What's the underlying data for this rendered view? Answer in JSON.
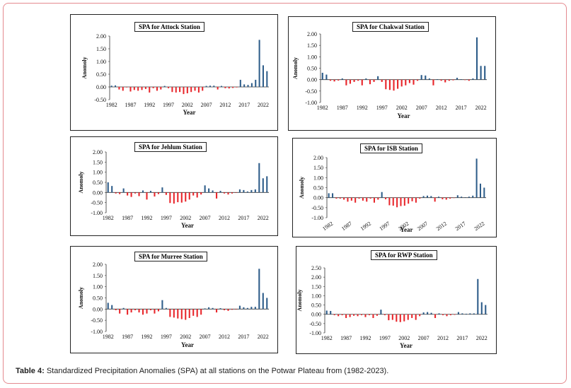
{
  "caption": {
    "label": "Table 4:",
    "text": "Standardized Precipitation Anomalies (SPA) at all stations on the Potwar Plateau from (1982-2023)."
  },
  "colors": {
    "positive": "#2e5d8a",
    "negative": "#e8262b",
    "frame": "#e48a8f"
  },
  "chart_data": [
    {
      "type": "bar",
      "title": "SPA for Attock Station",
      "xlabel": "Year",
      "ylabel": "Anomoly",
      "ylim": [
        -0.5,
        2.0
      ],
      "yticks": [
        "2.00",
        "1.50",
        "1.00",
        "0.50",
        "0.00",
        "-0.50"
      ],
      "xticks": [
        "1982",
        "1987",
        "1992",
        "1997",
        "2002",
        "2007",
        "2012",
        "2017",
        "2022"
      ],
      "x": [
        1982,
        1983,
        1984,
        1985,
        1986,
        1987,
        1988,
        1989,
        1990,
        1991,
        1992,
        1993,
        1994,
        1995,
        1996,
        1997,
        1998,
        1999,
        2000,
        2001,
        2002,
        2003,
        2004,
        2005,
        2006,
        2007,
        2008,
        2009,
        2010,
        2011,
        2012,
        2013,
        2014,
        2015,
        2016,
        2017,
        2018,
        2019,
        2020,
        2021,
        2022,
        2023
      ],
      "values": [
        0.05,
        0.06,
        -0.1,
        -0.15,
        -0.02,
        -0.18,
        -0.12,
        -0.15,
        -0.12,
        -0.08,
        -0.22,
        -0.05,
        -0.15,
        -0.1,
        0.04,
        -0.05,
        -0.2,
        -0.22,
        -0.2,
        -0.28,
        -0.25,
        -0.2,
        -0.15,
        -0.22,
        -0.15,
        0.04,
        0.05,
        0.05,
        -0.1,
        0.04,
        -0.05,
        -0.06,
        -0.04,
        -0.02,
        0.28,
        0.1,
        0.08,
        0.15,
        0.28,
        1.85,
        0.85,
        0.62
      ]
    },
    {
      "type": "bar",
      "title": "SPA for Chakwal Station",
      "xlabel": "Year",
      "ylabel": "Anomoly",
      "ylim": [
        -1.0,
        2.0
      ],
      "yticks": [
        "2.00",
        "1.50",
        "1.00",
        "0.50",
        "0.00",
        "-0.50",
        "-1.00"
      ],
      "xticks": [
        "1982",
        "1987",
        "1992",
        "1997",
        "2002",
        "2007",
        "2012",
        "2017",
        "2022"
      ],
      "x": [
        1982,
        1983,
        1984,
        1985,
        1986,
        1987,
        1988,
        1989,
        1990,
        1991,
        1992,
        1993,
        1994,
        1995,
        1996,
        1997,
        1998,
        1999,
        2000,
        2001,
        2002,
        2003,
        2004,
        2005,
        2006,
        2007,
        2008,
        2009,
        2010,
        2011,
        2012,
        2013,
        2014,
        2015,
        2016,
        2017,
        2018,
        2019,
        2020,
        2021,
        2022,
        2023
      ],
      "values": [
        0.3,
        0.22,
        -0.05,
        -0.08,
        -0.04,
        0.05,
        -0.25,
        -0.18,
        -0.1,
        -0.05,
        -0.25,
        0.05,
        -0.2,
        -0.1,
        0.15,
        -0.1,
        -0.42,
        -0.45,
        -0.48,
        -0.4,
        -0.3,
        -0.25,
        -0.15,
        -0.22,
        -0.05,
        0.2,
        0.18,
        0.05,
        -0.25,
        0.02,
        -0.05,
        -0.12,
        -0.05,
        -0.03,
        0.08,
        0.02,
        -0.02,
        -0.05,
        0.05,
        1.85,
        0.6,
        0.6
      ]
    },
    {
      "type": "bar",
      "title": "SPA for Jehlum Station",
      "xlabel": "Year",
      "ylabel": "Anomoly",
      "ylim": [
        -1.0,
        2.0
      ],
      "yticks": [
        "2.00",
        "1.50",
        "1.00",
        "0.50",
        "0.00",
        "-0.50",
        "-1.00"
      ],
      "xticks": [
        "1982",
        "1987",
        "1992",
        "1997",
        "2002",
        "2007",
        "2012",
        "2017",
        "2022"
      ],
      "x": [
        1982,
        1983,
        1984,
        1985,
        1986,
        1987,
        1988,
        1989,
        1990,
        1991,
        1992,
        1993,
        1994,
        1995,
        1996,
        1997,
        1998,
        1999,
        2000,
        2001,
        2002,
        2003,
        2004,
        2005,
        2006,
        2007,
        2008,
        2009,
        2010,
        2011,
        2012,
        2013,
        2014,
        2015,
        2016,
        2017,
        2018,
        2019,
        2020,
        2021,
        2022,
        2023
      ],
      "values": [
        0.5,
        0.32,
        -0.05,
        -0.08,
        0.2,
        -0.15,
        -0.22,
        -0.05,
        -0.18,
        0.1,
        -0.35,
        0.08,
        -0.2,
        -0.08,
        0.25,
        -0.12,
        -0.52,
        -0.55,
        -0.48,
        -0.5,
        -0.45,
        -0.35,
        -0.15,
        -0.25,
        -0.1,
        0.35,
        0.2,
        0.1,
        -0.3,
        0.08,
        -0.05,
        -0.1,
        -0.05,
        -0.02,
        0.15,
        0.12,
        0.05,
        0.12,
        0.15,
        1.45,
        0.7,
        0.8
      ]
    },
    {
      "type": "bar",
      "title": "SPA for ISB Station",
      "xlabel": "Year",
      "ylabel": "Anomoly",
      "ylim": [
        -1.0,
        2.0
      ],
      "yticks": [
        "2.00",
        "1.50",
        "1.00",
        "0.50",
        "0.00",
        "-0.50",
        "-1.00"
      ],
      "xticks": [
        "1982",
        "1987",
        "1992",
        "1997",
        "2002",
        "2007",
        "2012",
        "2017",
        "2022"
      ],
      "x": [
        1982,
        1983,
        1984,
        1985,
        1986,
        1987,
        1988,
        1989,
        1990,
        1991,
        1992,
        1993,
        1994,
        1995,
        1996,
        1997,
        1998,
        1999,
        2000,
        2001,
        2002,
        2003,
        2004,
        2005,
        2006,
        2007,
        2008,
        2009,
        2010,
        2011,
        2012,
        2013,
        2014,
        2015,
        2016,
        2017,
        2018,
        2019,
        2020,
        2021,
        2022,
        2023
      ],
      "values": [
        0.22,
        0.22,
        -0.05,
        -0.05,
        -0.1,
        -0.2,
        -0.15,
        -0.25,
        -0.05,
        -0.15,
        -0.2,
        -0.05,
        -0.25,
        -0.1,
        0.28,
        -0.08,
        -0.38,
        -0.4,
        -0.48,
        -0.42,
        -0.4,
        -0.3,
        -0.18,
        -0.25,
        -0.05,
        0.08,
        0.1,
        0.08,
        -0.2,
        0.05,
        -0.08,
        -0.1,
        -0.05,
        -0.02,
        0.12,
        0.05,
        0.02,
        0.05,
        0.1,
        1.95,
        0.7,
        0.5
      ]
    },
    {
      "type": "bar",
      "title": "SPA for Murree Station",
      "xlabel": "Year",
      "ylabel": "Anomoly",
      "ylim": [
        -1.0,
        2.0
      ],
      "yticks": [
        "2.00",
        "1.50",
        "1.00",
        "0.50",
        "0.00",
        "-0.50",
        "-1.00"
      ],
      "xticks": [
        "1982",
        "1987",
        "1992",
        "1997",
        "2002",
        "2007",
        "2012",
        "2017",
        "2022"
      ],
      "x": [
        1982,
        1983,
        1984,
        1985,
        1986,
        1987,
        1988,
        1989,
        1990,
        1991,
        1992,
        1993,
        1994,
        1995,
        1996,
        1997,
        1998,
        1999,
        2000,
        2001,
        2002,
        2003,
        2004,
        2005,
        2006,
        2007,
        2008,
        2009,
        2010,
        2011,
        2012,
        2013,
        2014,
        2015,
        2016,
        2017,
        2018,
        2019,
        2020,
        2021,
        2022,
        2023
      ],
      "values": [
        0.28,
        0.18,
        -0.05,
        -0.2,
        0.05,
        -0.25,
        -0.15,
        -0.05,
        -0.15,
        -0.25,
        -0.2,
        -0.05,
        -0.2,
        -0.1,
        0.4,
        0.05,
        -0.35,
        -0.38,
        -0.42,
        -0.45,
        -0.48,
        -0.4,
        -0.3,
        -0.35,
        -0.25,
        0.03,
        0.08,
        0.05,
        -0.15,
        0.04,
        -0.05,
        -0.08,
        -0.03,
        -0.02,
        0.15,
        0.08,
        0.05,
        0.1,
        0.1,
        1.8,
        0.72,
        0.5
      ]
    },
    {
      "type": "bar",
      "title": "SPA for RWP Station",
      "xlabel": "Year",
      "ylabel": "Anomoly",
      "ylim": [
        -1.0,
        2.5
      ],
      "yticks": [
        "2.50",
        "2.00",
        "1.50",
        "1.00",
        "0.50",
        "0.00",
        "-0.50",
        "-1.00"
      ],
      "xticks": [
        "1982",
        "1987",
        "1992",
        "1997",
        "2002",
        "2007",
        "2012",
        "2017",
        "2022"
      ],
      "x": [
        1982,
        1983,
        1984,
        1985,
        1986,
        1987,
        1988,
        1989,
        1990,
        1991,
        1992,
        1993,
        1994,
        1995,
        1996,
        1997,
        1998,
        1999,
        2000,
        2001,
        2002,
        2003,
        2004,
        2005,
        2006,
        2007,
        2008,
        2009,
        2010,
        2011,
        2012,
        2013,
        2014,
        2015,
        2016,
        2017,
        2018,
        2019,
        2020,
        2021,
        2022,
        2023
      ],
      "values": [
        0.2,
        0.18,
        -0.05,
        -0.1,
        -0.05,
        -0.2,
        -0.15,
        -0.08,
        -0.1,
        -0.05,
        -0.15,
        -0.05,
        -0.2,
        -0.08,
        0.25,
        -0.05,
        -0.32,
        -0.3,
        -0.4,
        -0.42,
        -0.38,
        -0.3,
        -0.2,
        -0.3,
        -0.1,
        0.1,
        0.12,
        0.08,
        -0.2,
        0.05,
        -0.05,
        -0.1,
        -0.05,
        -0.03,
        0.12,
        0.05,
        0.03,
        0.05,
        0.05,
        1.9,
        0.65,
        0.5
      ]
    }
  ]
}
